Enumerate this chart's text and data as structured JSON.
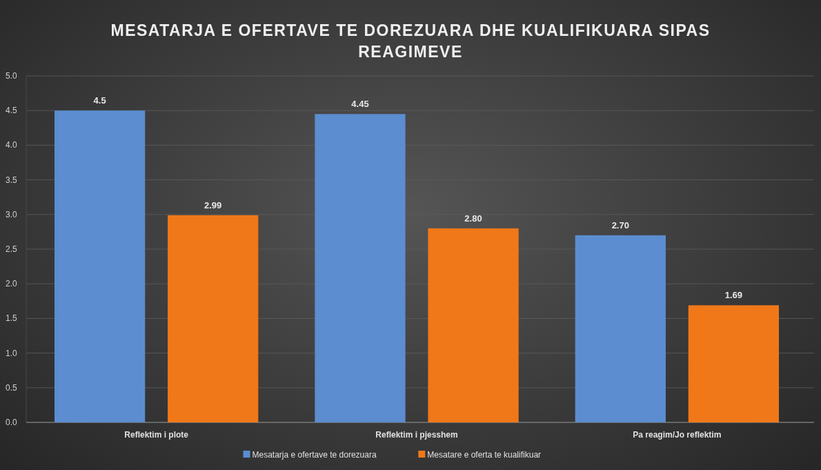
{
  "chart_data": {
    "type": "bar",
    "title": "MESATARJA E OFERTAVE TE DOREZUARA DHE KUALIFIKUARA SIPAS REAGIMEVE",
    "categories": [
      "Reflektim i plote",
      "Reflektim i pjesshem",
      "Pa reagim/Jo reflektim"
    ],
    "series": [
      {
        "name": "Mesatarja e ofertave te dorezuara",
        "color": "#5b8dd0",
        "values": [
          4.5,
          4.45,
          2.7
        ],
        "value_labels": [
          "4.5",
          "4.45",
          "2.70"
        ]
      },
      {
        "name": "Mesatare e oferta te kualifikuar",
        "color": "#f07818",
        "values": [
          2.99,
          2.8,
          1.69
        ],
        "value_labels": [
          "2.99",
          "2.80",
          "1.69"
        ]
      }
    ],
    "ylim": [
      0,
      5
    ],
    "yticks": [
      {
        "value": 0,
        "label": "0.0"
      },
      {
        "value": 0.5,
        "label": "0.5"
      },
      {
        "value": 1,
        "label": "1.0"
      },
      {
        "value": 1.5,
        "label": "1.5"
      },
      {
        "value": 2,
        "label": "2.0"
      },
      {
        "value": 2.5,
        "label": "2.5"
      },
      {
        "value": 3,
        "label": "3.0"
      },
      {
        "value": 3.5,
        "label": "3.5"
      },
      {
        "value": 4,
        "label": "4.0"
      },
      {
        "value": 4.5,
        "label": "4.5"
      },
      {
        "value": 5,
        "label": "5.0"
      }
    ],
    "grid": "y",
    "legend": "bottom"
  }
}
